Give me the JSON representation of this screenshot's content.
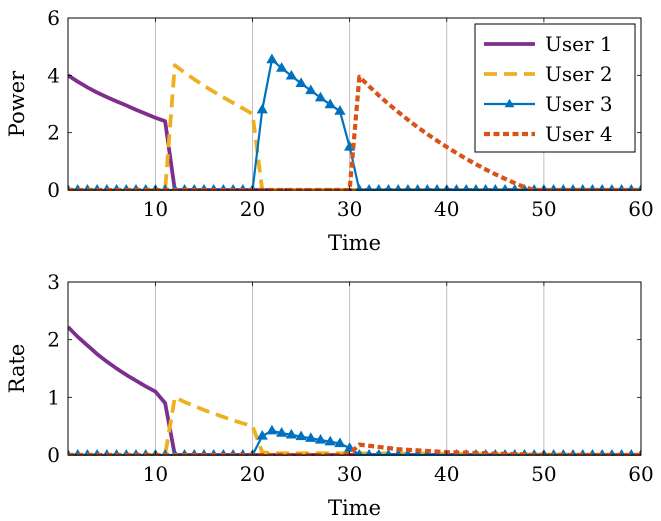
{
  "chart_data": [
    {
      "type": "line",
      "xlabel": "Time",
      "ylabel": "Power",
      "xlim": [
        1,
        60
      ],
      "ylim": [
        0,
        6
      ],
      "xticks": [
        10,
        20,
        30,
        40,
        50,
        60
      ],
      "yticks": [
        0,
        2,
        4,
        6
      ],
      "xgrid": true,
      "legend": "top-right",
      "series": [
        {
          "name": "User 1",
          "color": "#7e2f8e",
          "style": "solid",
          "marker": "none",
          "points": [
            [
              1,
              4.0
            ],
            [
              2,
              3.78
            ],
            [
              3,
              3.58
            ],
            [
              4,
              3.4
            ],
            [
              5,
              3.24
            ],
            [
              6,
              3.09
            ],
            [
              7,
              2.95
            ],
            [
              8,
              2.8
            ],
            [
              9,
              2.66
            ],
            [
              10,
              2.52
            ],
            [
              11,
              2.4
            ],
            [
              12,
              0
            ],
            [
              13,
              0
            ],
            [
              60,
              0
            ]
          ]
        },
        {
          "name": "User 2",
          "color": "#edb120",
          "style": "dashed",
          "marker": "none",
          "points": [
            [
              1,
              0
            ],
            [
              10,
              0
            ],
            [
              11,
              0
            ],
            [
              12,
              4.35
            ],
            [
              13,
              4.1
            ],
            [
              14,
              3.86
            ],
            [
              15,
              3.64
            ],
            [
              16,
              3.43
            ],
            [
              17,
              3.23
            ],
            [
              18,
              3.04
            ],
            [
              19,
              2.85
            ],
            [
              20,
              2.65
            ],
            [
              21,
              0
            ],
            [
              22,
              0
            ],
            [
              60,
              0
            ]
          ]
        },
        {
          "name": "User 3",
          "color": "#0072bd",
          "style": "solid",
          "marker": "triangle",
          "points": [
            [
              1,
              0
            ],
            [
              2,
              0
            ],
            [
              3,
              0
            ],
            [
              4,
              0
            ],
            [
              5,
              0
            ],
            [
              6,
              0
            ],
            [
              7,
              0
            ],
            [
              8,
              0
            ],
            [
              9,
              0
            ],
            [
              10,
              0
            ],
            [
              11,
              0
            ],
            [
              12,
              0
            ],
            [
              13,
              0
            ],
            [
              14,
              0
            ],
            [
              15,
              0
            ],
            [
              16,
              0
            ],
            [
              17,
              0
            ],
            [
              18,
              0
            ],
            [
              19,
              0
            ],
            [
              20,
              0
            ],
            [
              21,
              2.8
            ],
            [
              22,
              4.55
            ],
            [
              23,
              4.25
            ],
            [
              24,
              3.98
            ],
            [
              25,
              3.72
            ],
            [
              26,
              3.47
            ],
            [
              27,
              3.22
            ],
            [
              28,
              2.98
            ],
            [
              29,
              2.75
            ],
            [
              30,
              1.5
            ],
            [
              31,
              0
            ],
            [
              32,
              0
            ],
            [
              33,
              0
            ],
            [
              34,
              0
            ],
            [
              35,
              0
            ],
            [
              36,
              0
            ],
            [
              37,
              0
            ],
            [
              38,
              0
            ],
            [
              39,
              0
            ],
            [
              40,
              0
            ],
            [
              41,
              0
            ],
            [
              42,
              0
            ],
            [
              43,
              0
            ],
            [
              44,
              0
            ],
            [
              45,
              0
            ],
            [
              46,
              0
            ],
            [
              47,
              0
            ],
            [
              48,
              0
            ],
            [
              49,
              0
            ],
            [
              50,
              0
            ],
            [
              51,
              0
            ],
            [
              52,
              0
            ],
            [
              53,
              0
            ],
            [
              54,
              0
            ],
            [
              55,
              0
            ],
            [
              56,
              0
            ],
            [
              57,
              0
            ],
            [
              58,
              0
            ],
            [
              59,
              0
            ],
            [
              60,
              0
            ]
          ]
        },
        {
          "name": "User 4",
          "color": "#d95319",
          "style": "dotted",
          "marker": "none",
          "points": [
            [
              1,
              0
            ],
            [
              29,
              0
            ],
            [
              30,
              0
            ],
            [
              31,
              3.95
            ],
            [
              32,
              3.62
            ],
            [
              33,
              3.3
            ],
            [
              34,
              3.0
            ],
            [
              35,
              2.72
            ],
            [
              36,
              2.45
            ],
            [
              37,
              2.19
            ],
            [
              38,
              1.95
            ],
            [
              39,
              1.72
            ],
            [
              40,
              1.5
            ],
            [
              41,
              1.29
            ],
            [
              42,
              1.09
            ],
            [
              43,
              0.9
            ],
            [
              44,
              0.72
            ],
            [
              45,
              0.55
            ],
            [
              46,
              0.39
            ],
            [
              47,
              0.24
            ],
            [
              48,
              0.1
            ],
            [
              49,
              0
            ],
            [
              60,
              0
            ]
          ]
        }
      ]
    },
    {
      "type": "line",
      "xlabel": "Time",
      "ylabel": "Rate",
      "xlim": [
        1,
        60
      ],
      "ylim": [
        0,
        3
      ],
      "xticks": [
        10,
        20,
        30,
        40,
        50,
        60
      ],
      "yticks": [
        0,
        1,
        2,
        3
      ],
      "xgrid": true,
      "legend": "none",
      "series": [
        {
          "name": "User 1",
          "color": "#7e2f8e",
          "style": "solid",
          "marker": "none",
          "points": [
            [
              1,
              2.22
            ],
            [
              2,
              2.05
            ],
            [
              3,
              1.9
            ],
            [
              4,
              1.75
            ],
            [
              5,
              1.62
            ],
            [
              6,
              1.5
            ],
            [
              7,
              1.39
            ],
            [
              8,
              1.29
            ],
            [
              9,
              1.19
            ],
            [
              10,
              1.1
            ],
            [
              11,
              0.9
            ],
            [
              12,
              0
            ],
            [
              13,
              0
            ],
            [
              60,
              0
            ]
          ]
        },
        {
          "name": "User 2",
          "color": "#edb120",
          "style": "dashed",
          "marker": "none",
          "points": [
            [
              1,
              0
            ],
            [
              10,
              0
            ],
            [
              11,
              0
            ],
            [
              12,
              1.0
            ],
            [
              13,
              0.92
            ],
            [
              14,
              0.85
            ],
            [
              15,
              0.78
            ],
            [
              16,
              0.72
            ],
            [
              17,
              0.66
            ],
            [
              18,
              0.6
            ],
            [
              19,
              0.55
            ],
            [
              20,
              0.5
            ],
            [
              21,
              0.05
            ],
            [
              22,
              0.03
            ],
            [
              30,
              0.03
            ],
            [
              60,
              0
            ]
          ]
        },
        {
          "name": "User 3",
          "color": "#0072bd",
          "style": "solid",
          "marker": "triangle",
          "points": [
            [
              1,
              0
            ],
            [
              2,
              0
            ],
            [
              3,
              0
            ],
            [
              4,
              0
            ],
            [
              5,
              0
            ],
            [
              6,
              0
            ],
            [
              7,
              0
            ],
            [
              8,
              0
            ],
            [
              9,
              0
            ],
            [
              10,
              0
            ],
            [
              11,
              0
            ],
            [
              12,
              0
            ],
            [
              13,
              0
            ],
            [
              14,
              0
            ],
            [
              15,
              0
            ],
            [
              16,
              0
            ],
            [
              17,
              0
            ],
            [
              18,
              0
            ],
            [
              19,
              0
            ],
            [
              20,
              0
            ],
            [
              21,
              0.33
            ],
            [
              22,
              0.42
            ],
            [
              23,
              0.38
            ],
            [
              24,
              0.35
            ],
            [
              25,
              0.32
            ],
            [
              26,
              0.29
            ],
            [
              27,
              0.26
            ],
            [
              28,
              0.23
            ],
            [
              29,
              0.2
            ],
            [
              30,
              0.12
            ],
            [
              31,
              0
            ],
            [
              32,
              0
            ],
            [
              33,
              0
            ],
            [
              34,
              0
            ],
            [
              35,
              0
            ],
            [
              36,
              0
            ],
            [
              37,
              0
            ],
            [
              38,
              0
            ],
            [
              39,
              0
            ],
            [
              40,
              0
            ],
            [
              41,
              0
            ],
            [
              42,
              0
            ],
            [
              43,
              0
            ],
            [
              44,
              0
            ],
            [
              45,
              0
            ],
            [
              46,
              0
            ],
            [
              47,
              0
            ],
            [
              48,
              0
            ],
            [
              49,
              0
            ],
            [
              50,
              0
            ],
            [
              51,
              0
            ],
            [
              52,
              0
            ],
            [
              53,
              0
            ],
            [
              54,
              0
            ],
            [
              55,
              0
            ],
            [
              56,
              0
            ],
            [
              57,
              0
            ],
            [
              58,
              0
            ],
            [
              59,
              0
            ],
            [
              60,
              0
            ]
          ]
        },
        {
          "name": "User 4",
          "color": "#d95319",
          "style": "dotted",
          "marker": "none",
          "points": [
            [
              1,
              0
            ],
            [
              29,
              0
            ],
            [
              30,
              0.02
            ],
            [
              31,
              0.18
            ],
            [
              32,
              0.16
            ],
            [
              33,
              0.14
            ],
            [
              34,
              0.12
            ],
            [
              35,
              0.1
            ],
            [
              36,
              0.09
            ],
            [
              37,
              0.08
            ],
            [
              38,
              0.07
            ],
            [
              39,
              0.06
            ],
            [
              40,
              0.05
            ],
            [
              42,
              0.04
            ],
            [
              44,
              0.03
            ],
            [
              46,
              0.02
            ],
            [
              48,
              0.01
            ],
            [
              49,
              0
            ],
            [
              60,
              0
            ]
          ]
        }
      ]
    }
  ]
}
